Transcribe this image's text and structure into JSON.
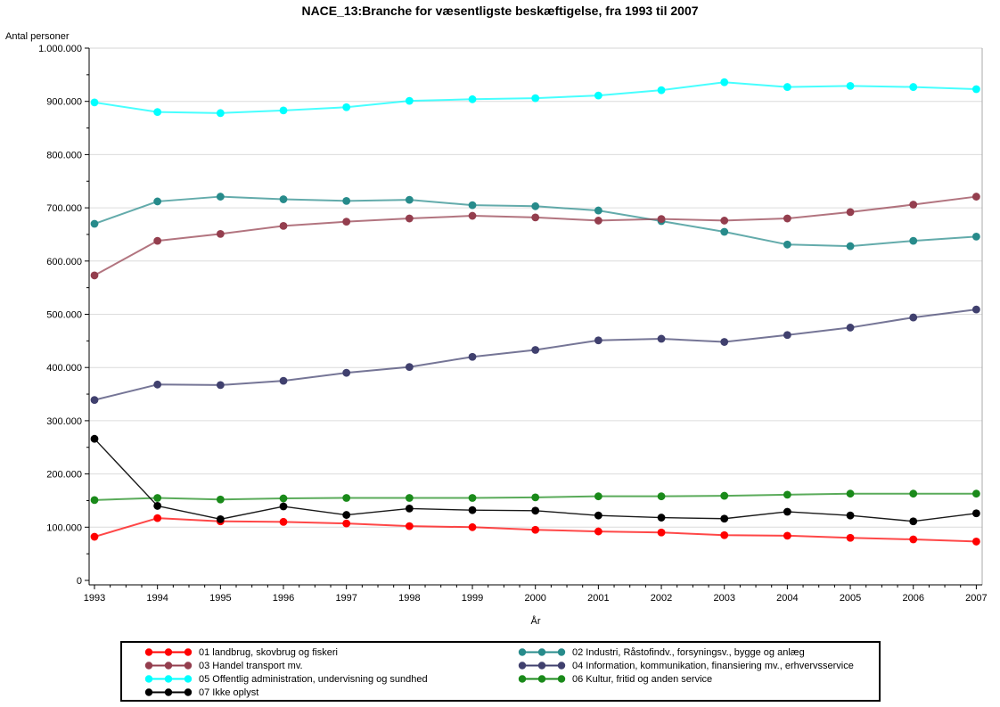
{
  "chart_data": {
    "type": "line",
    "title": "NACE_13:Branche for væsentligste beskæftigelse, fra 1993 til 2007",
    "xlabel": "År",
    "ylabel": "Antal personer",
    "x": [
      1993,
      1994,
      1995,
      1996,
      1997,
      1998,
      1999,
      2000,
      2001,
      2002,
      2003,
      2004,
      2005,
      2006,
      2007
    ],
    "x_tick_labels": [
      "1993",
      "1994",
      "1995",
      "1996",
      "1997",
      "1998",
      "1999",
      "2000",
      "2001",
      "2002",
      "2003",
      "2004",
      "2005",
      "2006",
      "2007"
    ],
    "ylim": [
      0,
      1000000
    ],
    "y_major_tick": 100000,
    "y_minor_tick": 50000,
    "y_tick_labels_top_to_bottom": [
      "1.000.000",
      "900.000",
      "800.000",
      "700.000",
      "600.000",
      "500.000",
      "400.000",
      "300.000",
      "200.000",
      "100.000",
      "0"
    ],
    "grid": "horizontal light-gray lines at y major ticks",
    "legend_position": "boxed legend below plot, two columns, markers are dot-line-dot",
    "number_format": "dot as thousands separator",
    "series": [
      {
        "id": "01",
        "label": "01 landbrug, skovbrug og fiskeri",
        "color": "#ff0000",
        "values": [
          82000,
          117000,
          111000,
          110000,
          107000,
          102000,
          100000,
          95000,
          92000,
          90000,
          85000,
          84000,
          80000,
          77000,
          73000
        ]
      },
      {
        "id": "02",
        "label": "02 Industri, Råstofindv., forsyningsv., bygge og anlæg",
        "color": "#278b8b",
        "values": [
          670000,
          712000,
          721000,
          716000,
          713000,
          715000,
          705000,
          703000,
          695000,
          675000,
          655000,
          631000,
          628000,
          638000,
          646000
        ]
      },
      {
        "id": "03",
        "label": "03 Handel transport mv.",
        "color": "#943e4e",
        "values": [
          573000,
          638000,
          651000,
          666000,
          674000,
          680000,
          685000,
          682000,
          676000,
          679000,
          676000,
          680000,
          692000,
          706000,
          721000
        ]
      },
      {
        "id": "04",
        "label": "04 Information, kommunikation, finansiering mv., erhvervsservice",
        "color": "#40406e",
        "values": [
          339000,
          368000,
          367000,
          375000,
          390000,
          401000,
          420000,
          433000,
          451000,
          454000,
          448000,
          461000,
          475000,
          494000,
          509000
        ]
      },
      {
        "id": "05",
        "label": "05 Offentlig administration, undervisning og sundhed",
        "color": "#00ffff",
        "values": [
          898000,
          880000,
          878000,
          883000,
          889000,
          901000,
          904000,
          906000,
          911000,
          921000,
          936000,
          927000,
          929000,
          927000,
          923000
        ]
      },
      {
        "id": "06",
        "label": "06 Kultur, fritid og anden service",
        "color": "#1a8a1a",
        "values": [
          151000,
          155000,
          152000,
          154000,
          155000,
          155000,
          155000,
          156000,
          158000,
          158000,
          159000,
          161000,
          163000,
          163000,
          163000
        ]
      },
      {
        "id": "07",
        "label": "07 Ikke oplyst",
        "color": "#000000",
        "values": [
          266000,
          140000,
          115000,
          139000,
          123000,
          135000,
          132000,
          131000,
          122000,
          118000,
          116000,
          129000,
          122000,
          111000,
          126000
        ]
      }
    ],
    "colors": {
      "background": "#ffffff",
      "grid": "#dcdcdc",
      "frame_top": "#d6d6d6",
      "frame_right": "#a9a9a9",
      "axis": "#000000"
    }
  }
}
